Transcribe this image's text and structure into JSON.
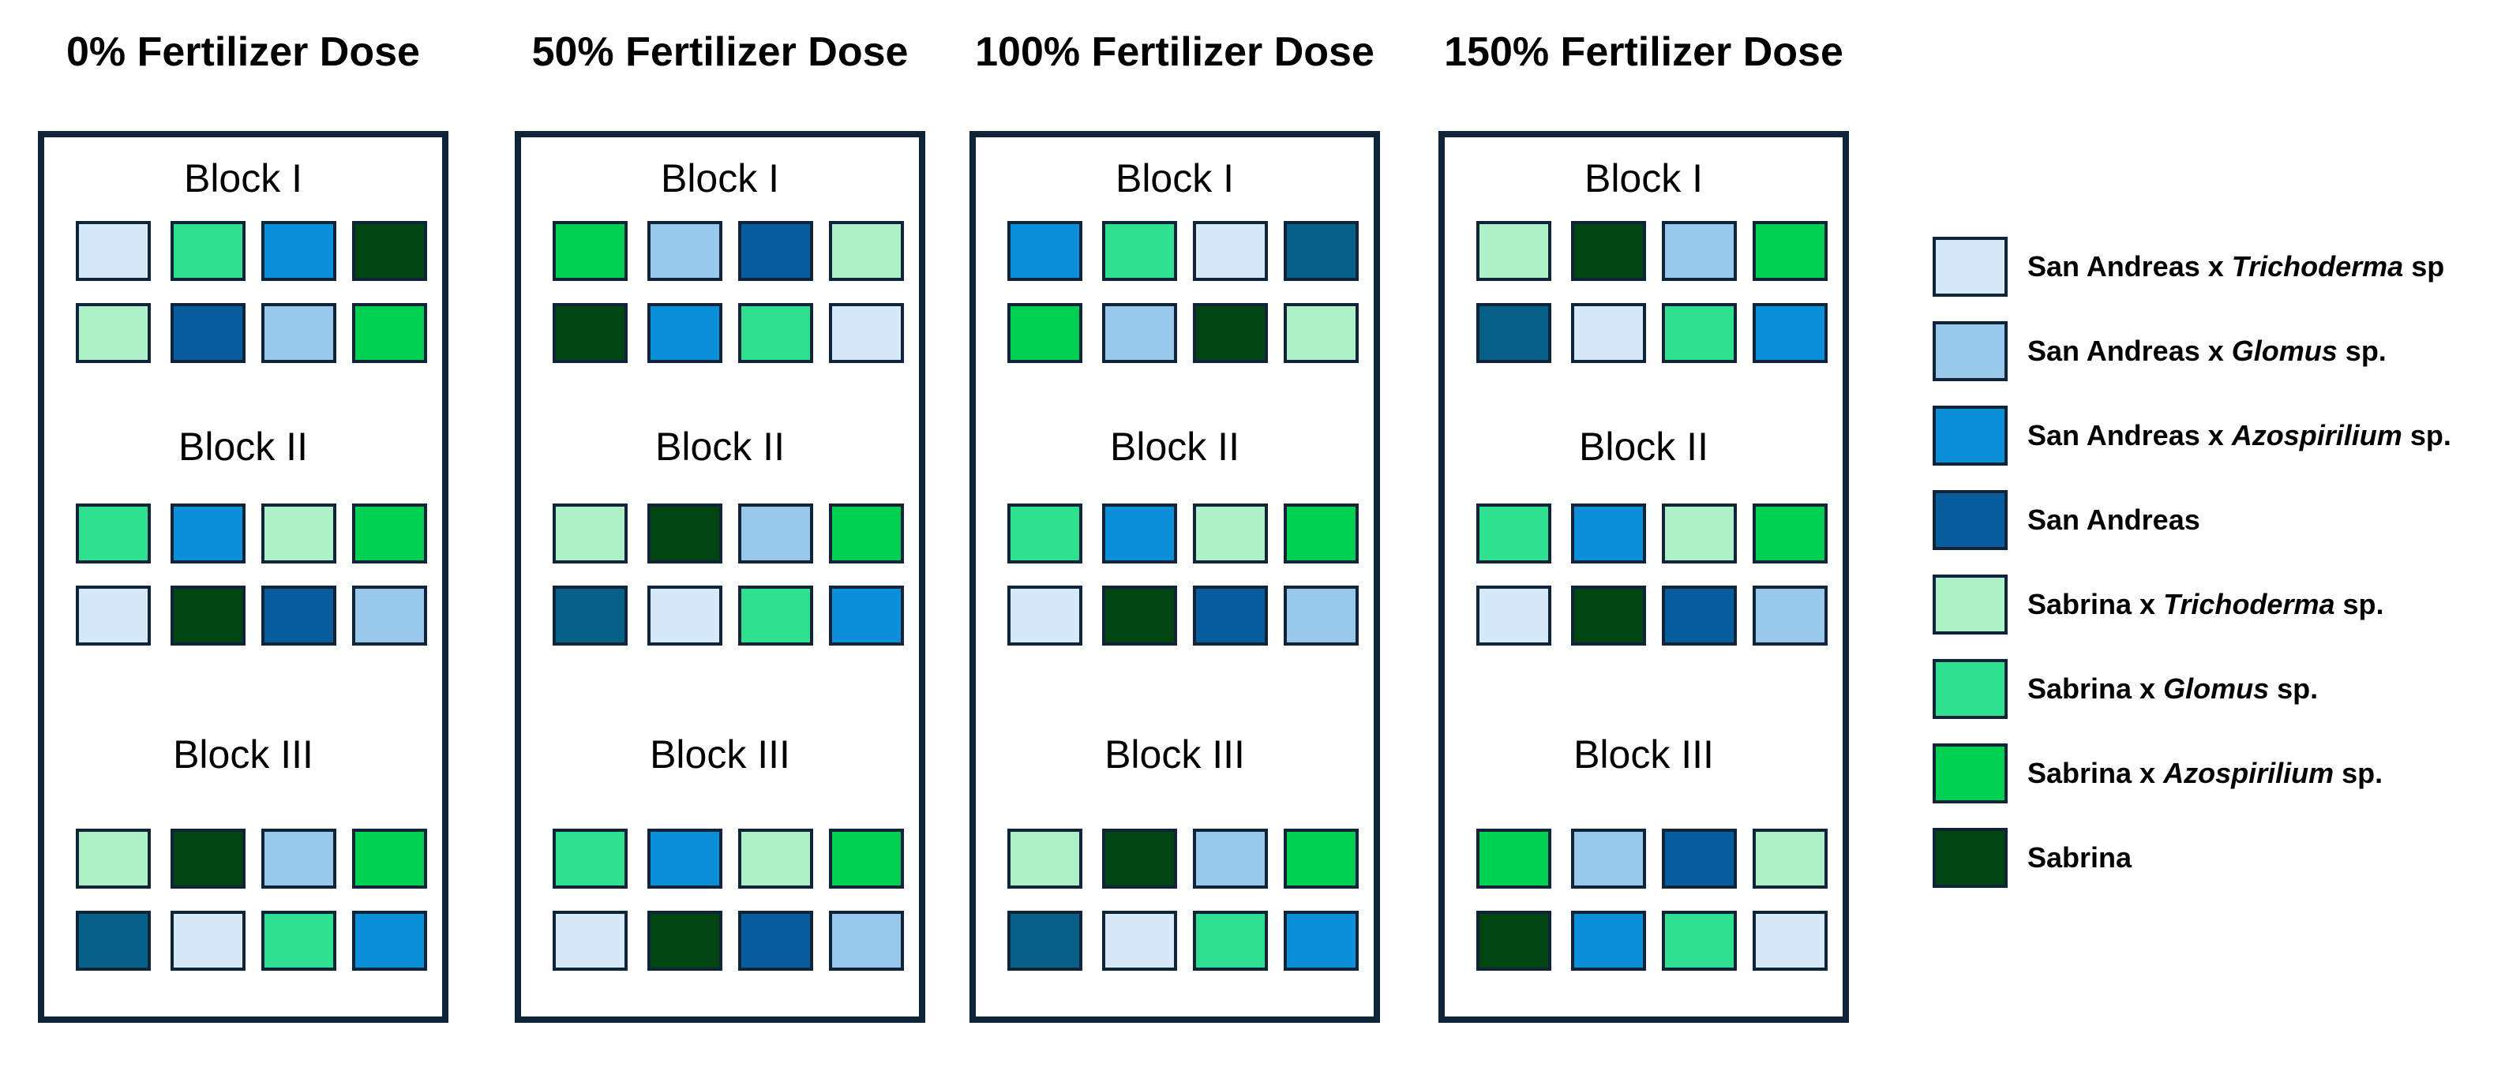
{
  "colors": {
    "border": "#0f2438",
    "SAT": "#d6e9f8",
    "SAG": "#98c9ec",
    "SAA": "#0b8fd9",
    "SA": "#075d9b",
    "SBT": "#aef0c8",
    "SBG": "#2ee08f",
    "SBA": "#00d051",
    "SB": "#004512",
    "TEAL": "#065f85"
  },
  "legend": [
    {
      "code": "SAT",
      "prefix": "San Andreas x ",
      "italic": "Trichoderma",
      "suffix": " sp"
    },
    {
      "code": "SAG",
      "prefix": "San Andreas x ",
      "italic": "Glomus",
      "suffix": " sp."
    },
    {
      "code": "SAA",
      "prefix": "San Andreas x ",
      "italic": "Azospirilium",
      "suffix": " sp."
    },
    {
      "code": "SA",
      "prefix": "San Andreas",
      "italic": "",
      "suffix": ""
    },
    {
      "code": "SBT",
      "prefix": "Sabrina x ",
      "italic": "Trichoderma",
      "suffix": " sp."
    },
    {
      "code": "SBG",
      "prefix": "Sabrina x ",
      "italic": "Glomus",
      "suffix": " sp."
    },
    {
      "code": "SBA",
      "prefix": "Sabrina x ",
      "italic": "Azospirilium",
      "suffix": " sp."
    },
    {
      "code": "SB",
      "prefix": "Sabrina",
      "italic": "",
      "suffix": ""
    }
  ],
  "doses": [
    {
      "title": "0% Fertilizer Dose",
      "blocks": [
        {
          "label": "Block I",
          "rows": [
            [
              "SAT",
              "SBG",
              "SAA",
              "SB"
            ],
            [
              "SBT",
              "SA",
              "SAG",
              "SBA"
            ]
          ]
        },
        {
          "label": "Block II",
          "rows": [
            [
              "SBG",
              "SAA",
              "SBT",
              "SBA"
            ],
            [
              "SAT",
              "SB",
              "SA",
              "SAG"
            ]
          ]
        },
        {
          "label": "Block III",
          "rows": [
            [
              "SBT",
              "SB",
              "SAG",
              "SBA"
            ],
            [
              "TEAL",
              "SAT",
              "SBG",
              "SAA"
            ]
          ]
        }
      ]
    },
    {
      "title": "50% Fertilizer Dose",
      "blocks": [
        {
          "label": "Block I",
          "rows": [
            [
              "SBA",
              "SAG",
              "SA",
              "SBT"
            ],
            [
              "SB",
              "SAA",
              "SBG",
              "SAT"
            ]
          ]
        },
        {
          "label": "Block II",
          "rows": [
            [
              "SBT",
              "SB",
              "SAG",
              "SBA"
            ],
            [
              "TEAL",
              "SAT",
              "SBG",
              "SAA"
            ]
          ]
        },
        {
          "label": "Block III",
          "rows": [
            [
              "SBG",
              "SAA",
              "SBT",
              "SBA"
            ],
            [
              "SAT",
              "SB",
              "SA",
              "SAG"
            ]
          ]
        }
      ]
    },
    {
      "title": "100% Fertilizer Dose",
      "blocks": [
        {
          "label": "Block I",
          "rows": [
            [
              "SAA",
              "SBG",
              "SAT",
              "TEAL"
            ],
            [
              "SBA",
              "SAG",
              "SB",
              "SBT"
            ]
          ]
        },
        {
          "label": "Block II",
          "rows": [
            [
              "SBG",
              "SAA",
              "SBT",
              "SBA"
            ],
            [
              "SAT",
              "SB",
              "SA",
              "SAG"
            ]
          ]
        },
        {
          "label": "Block III",
          "rows": [
            [
              "SBT",
              "SB",
              "SAG",
              "SBA"
            ],
            [
              "TEAL",
              "SAT",
              "SBG",
              "SAA"
            ]
          ]
        }
      ]
    },
    {
      "title": "150% Fertilizer Dose",
      "blocks": [
        {
          "label": "Block I",
          "rows": [
            [
              "SBT",
              "SB",
              "SAG",
              "SBA"
            ],
            [
              "TEAL",
              "SAT",
              "SBG",
              "SAA"
            ]
          ]
        },
        {
          "label": "Block II",
          "rows": [
            [
              "SBG",
              "SAA",
              "SBT",
              "SBA"
            ],
            [
              "SAT",
              "SB",
              "SA",
              "SAG"
            ]
          ]
        },
        {
          "label": "Block III",
          "rows": [
            [
              "SBA",
              "SAG",
              "SA",
              "SBT"
            ],
            [
              "SB",
              "SAA",
              "SBG",
              "SAT"
            ]
          ]
        }
      ]
    }
  ]
}
